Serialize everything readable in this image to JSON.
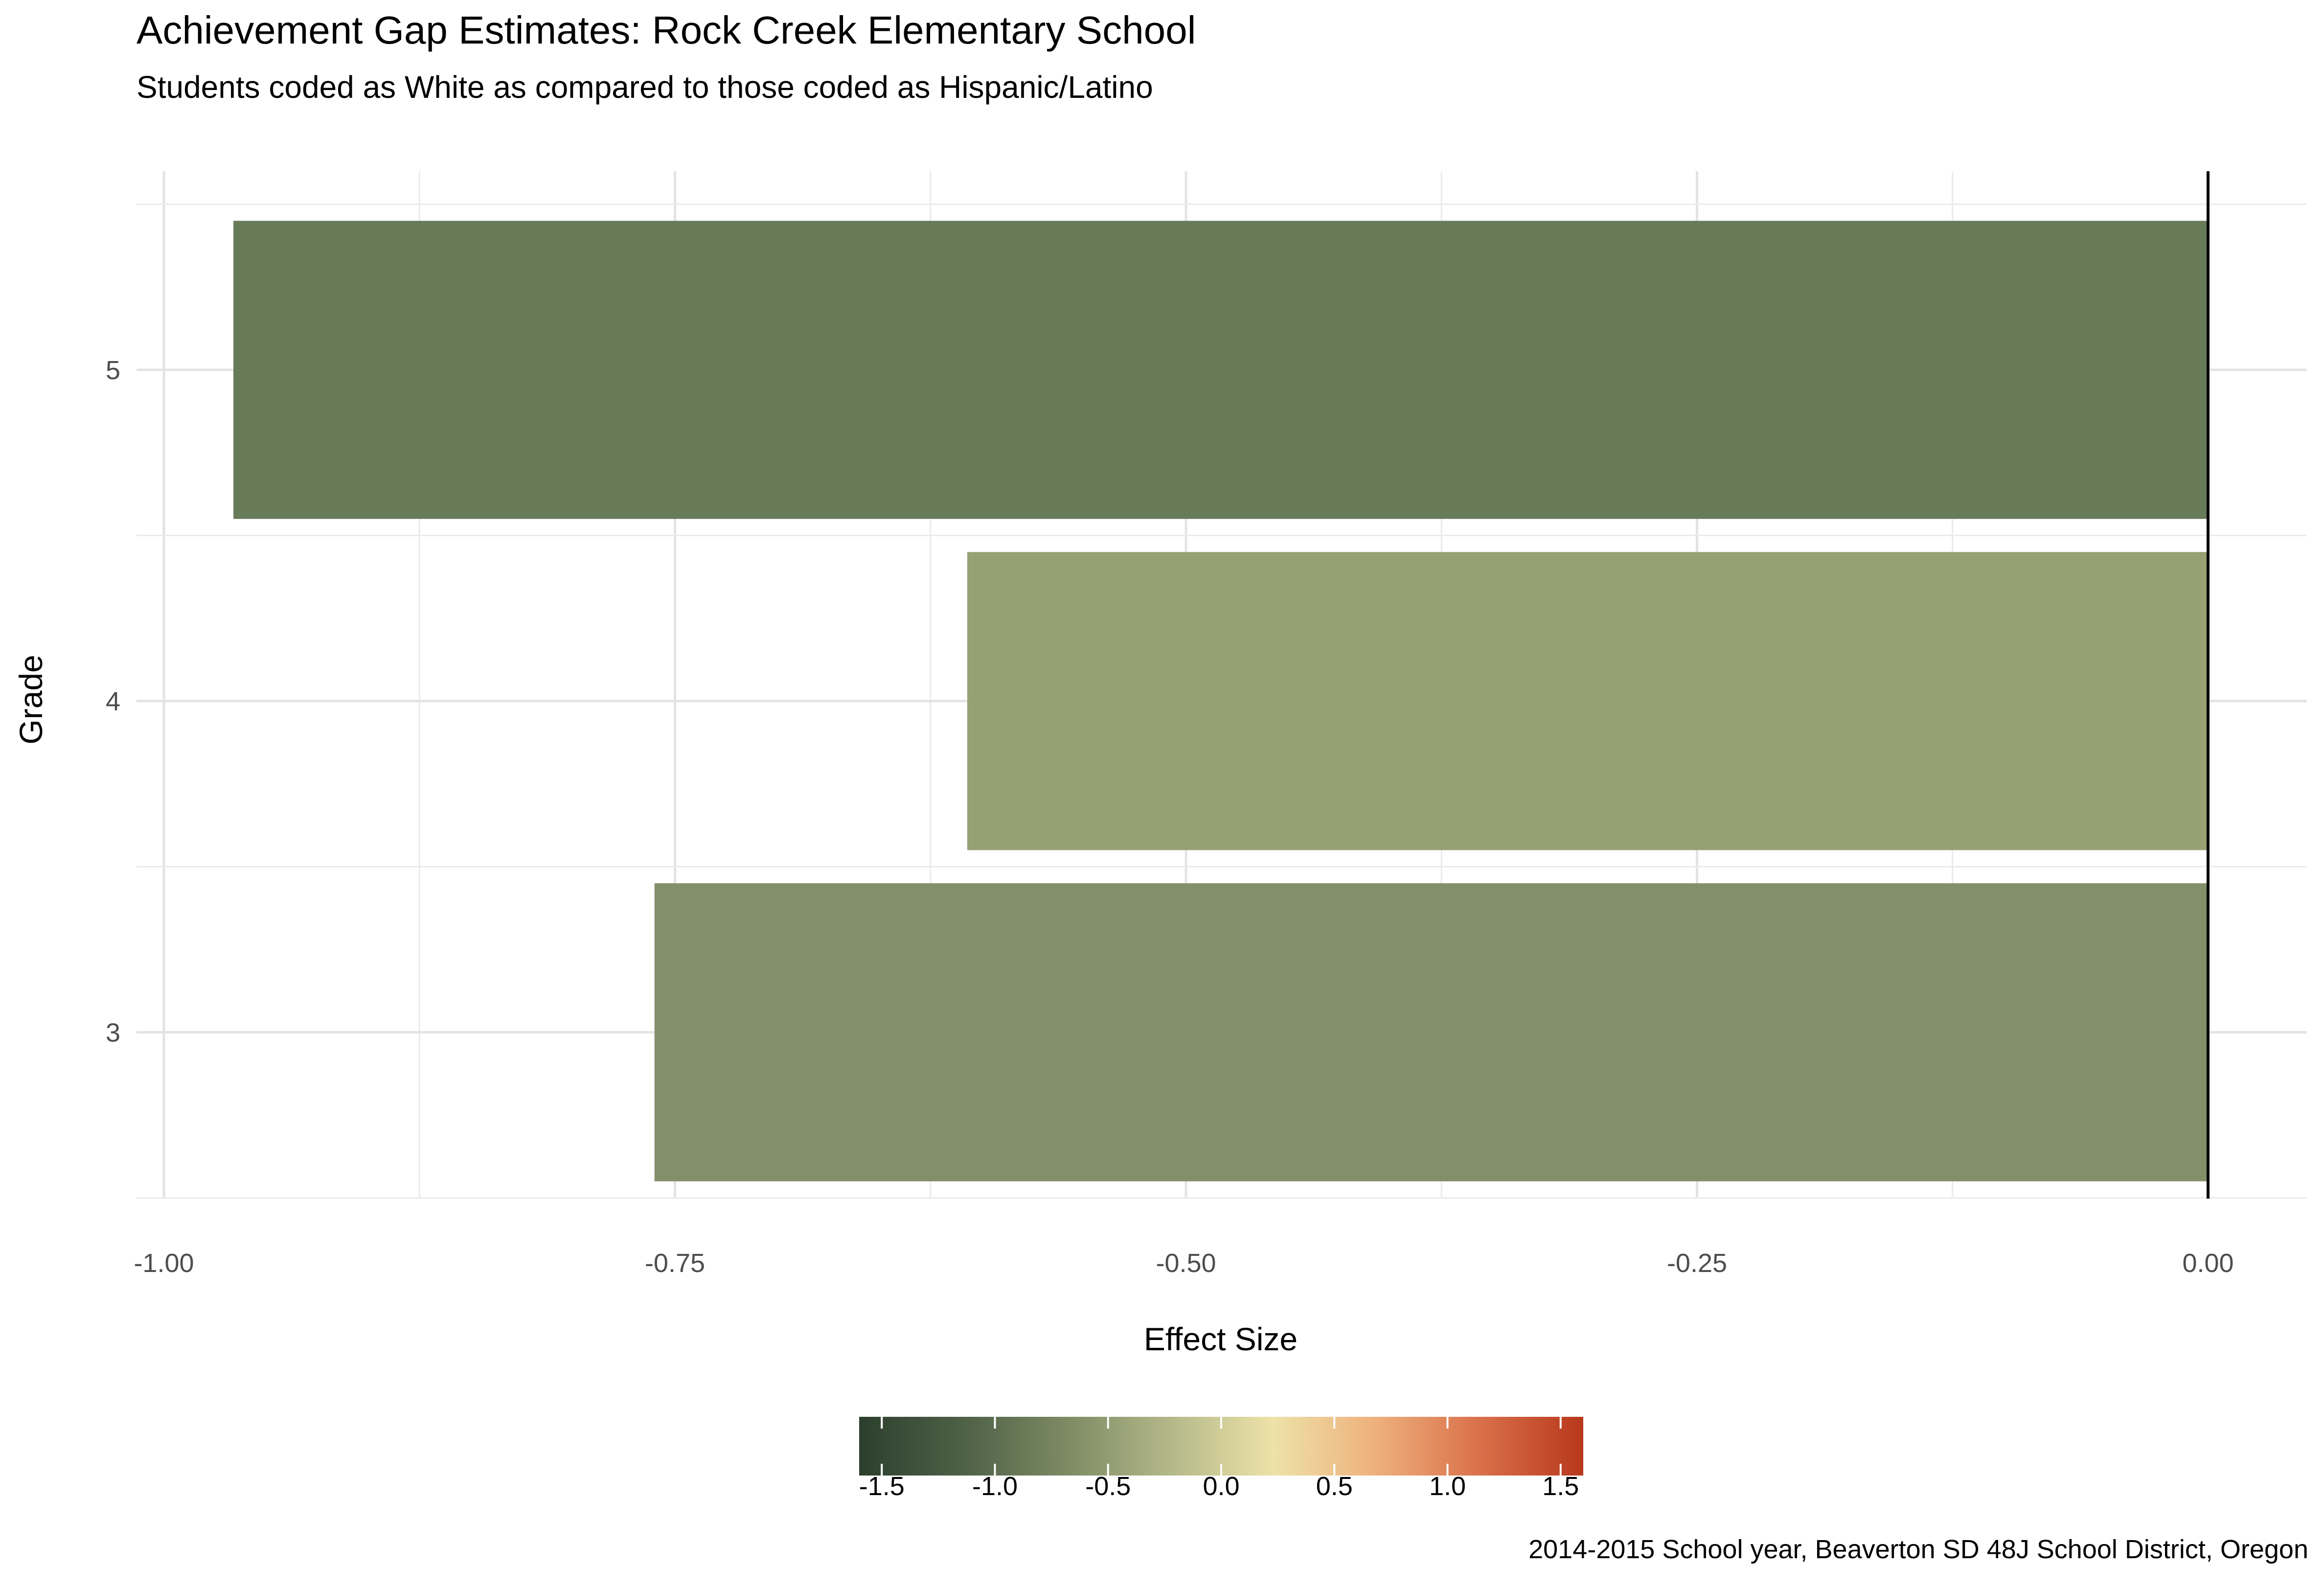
{
  "chart_data": {
    "type": "bar",
    "orientation": "horizontal",
    "title": "Achievement Gap Estimates: Rock Creek Elementary School",
    "subtitle": "Students coded as White as compared to those coded as Hispanic/Latino",
    "caption": "2014-2015 School year, Beaverton SD 48J School District, Oregon",
    "xlabel": "Effect Size",
    "ylabel": "Grade",
    "categories": [
      "3",
      "4",
      "5"
    ],
    "values": [
      -0.76,
      -0.607,
      -0.966
    ],
    "bar_colors": [
      "#838f69",
      "#97a073",
      "#677b59"
    ],
    "xlim": [
      -1.0,
      0.0
    ],
    "x_ticks": [
      -1.0,
      -0.75,
      -0.5,
      -0.25,
      0.0
    ],
    "x_tick_labels": [
      "-1.00",
      "-0.75",
      "-0.50",
      "-0.25",
      "0.00"
    ],
    "reference_line": 0.0,
    "grid": true,
    "legend": {
      "type": "colorbar",
      "position": "bottom",
      "range": [
        -1.6,
        1.6
      ],
      "ticks": [
        -1.5,
        -1.0,
        -0.5,
        0.0,
        0.5,
        1.0,
        1.5
      ],
      "tick_labels": [
        "-1.5",
        "-1.0",
        "-0.5",
        "0.0",
        "0.5",
        "1.0",
        "1.5"
      ],
      "colors": [
        "#2c3f2d",
        "#4d6147",
        "#7d8a63",
        "#b3b889",
        "#ede2a8",
        "#eeb07c",
        "#d9704a",
        "#b8381d"
      ]
    }
  }
}
